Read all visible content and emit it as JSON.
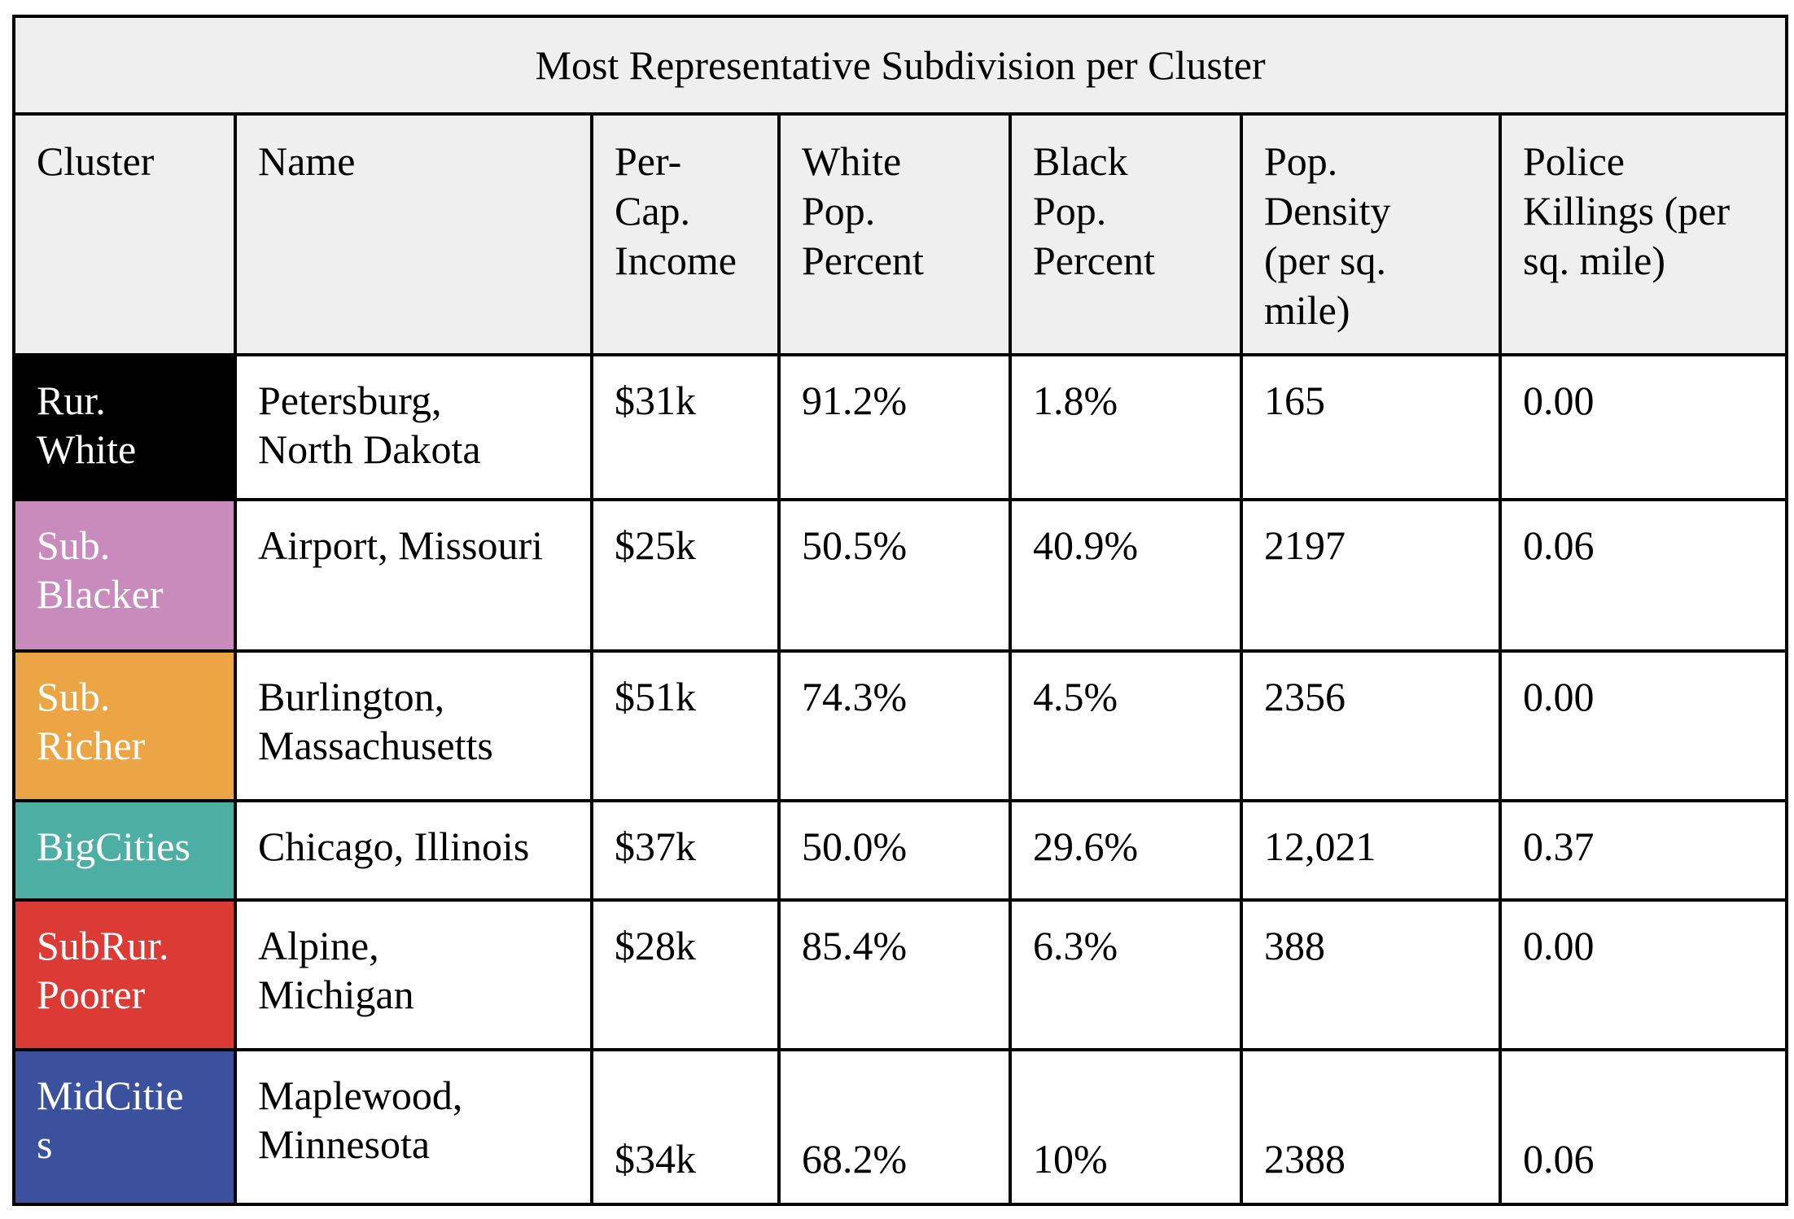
{
  "title": "Most Representative Subdivision per Cluster",
  "headers": [
    "Cluster",
    "Name",
    "Per-\nCap.\nIncome",
    "White\nPop.\nPercent",
    "Black\nPop.\nPercent",
    "Pop.\nDensity\n(per sq.\nmile)",
    "Police\nKillings (per\nsq. mile)"
  ],
  "rows": [
    {
      "cluster": "Rur.\nWhite",
      "cluster_color": "#000000",
      "name": "Petersburg,\nNorth Dakota",
      "income": "$31k",
      "white": "91.2%",
      "black": "1.8%",
      "density": "165",
      "killings": "0.00"
    },
    {
      "cluster": "Sub.\nBlacker",
      "cluster_color": "#c98bbb",
      "name": "Airport, Missouri",
      "income": "$25k",
      "white": "50.5%",
      "black": "40.9%",
      "density": "2197",
      "killings": "0.06"
    },
    {
      "cluster": "Sub.\nRicher",
      "cluster_color": "#eba545",
      "name": "Burlington,\nMassachusetts",
      "income": "$51k",
      "white": "74.3%",
      "black": "4.5%",
      "density": "2356",
      "killings": "0.00"
    },
    {
      "cluster": "BigCities",
      "cluster_color": "#4dafa3",
      "name": "Chicago, Illinois",
      "income": "$37k",
      "white": "50.0%",
      "black": "29.6%",
      "density": "12,021",
      "killings": "0.37"
    },
    {
      "cluster": "SubRur.\nPoorer",
      "cluster_color": "#dc3b35",
      "name": "Alpine,\nMichigan",
      "income": "$28k",
      "white": "85.4%",
      "black": "6.3%",
      "density": "388",
      "killings": "0.00"
    },
    {
      "cluster": "MidCitie\ns",
      "cluster_color": "#3c519e",
      "name": "Maplewood,\nMinnesota",
      "income": "$34k",
      "white": "68.2%",
      "black": "10%",
      "density": "2388",
      "killings": "0.06"
    }
  ]
}
